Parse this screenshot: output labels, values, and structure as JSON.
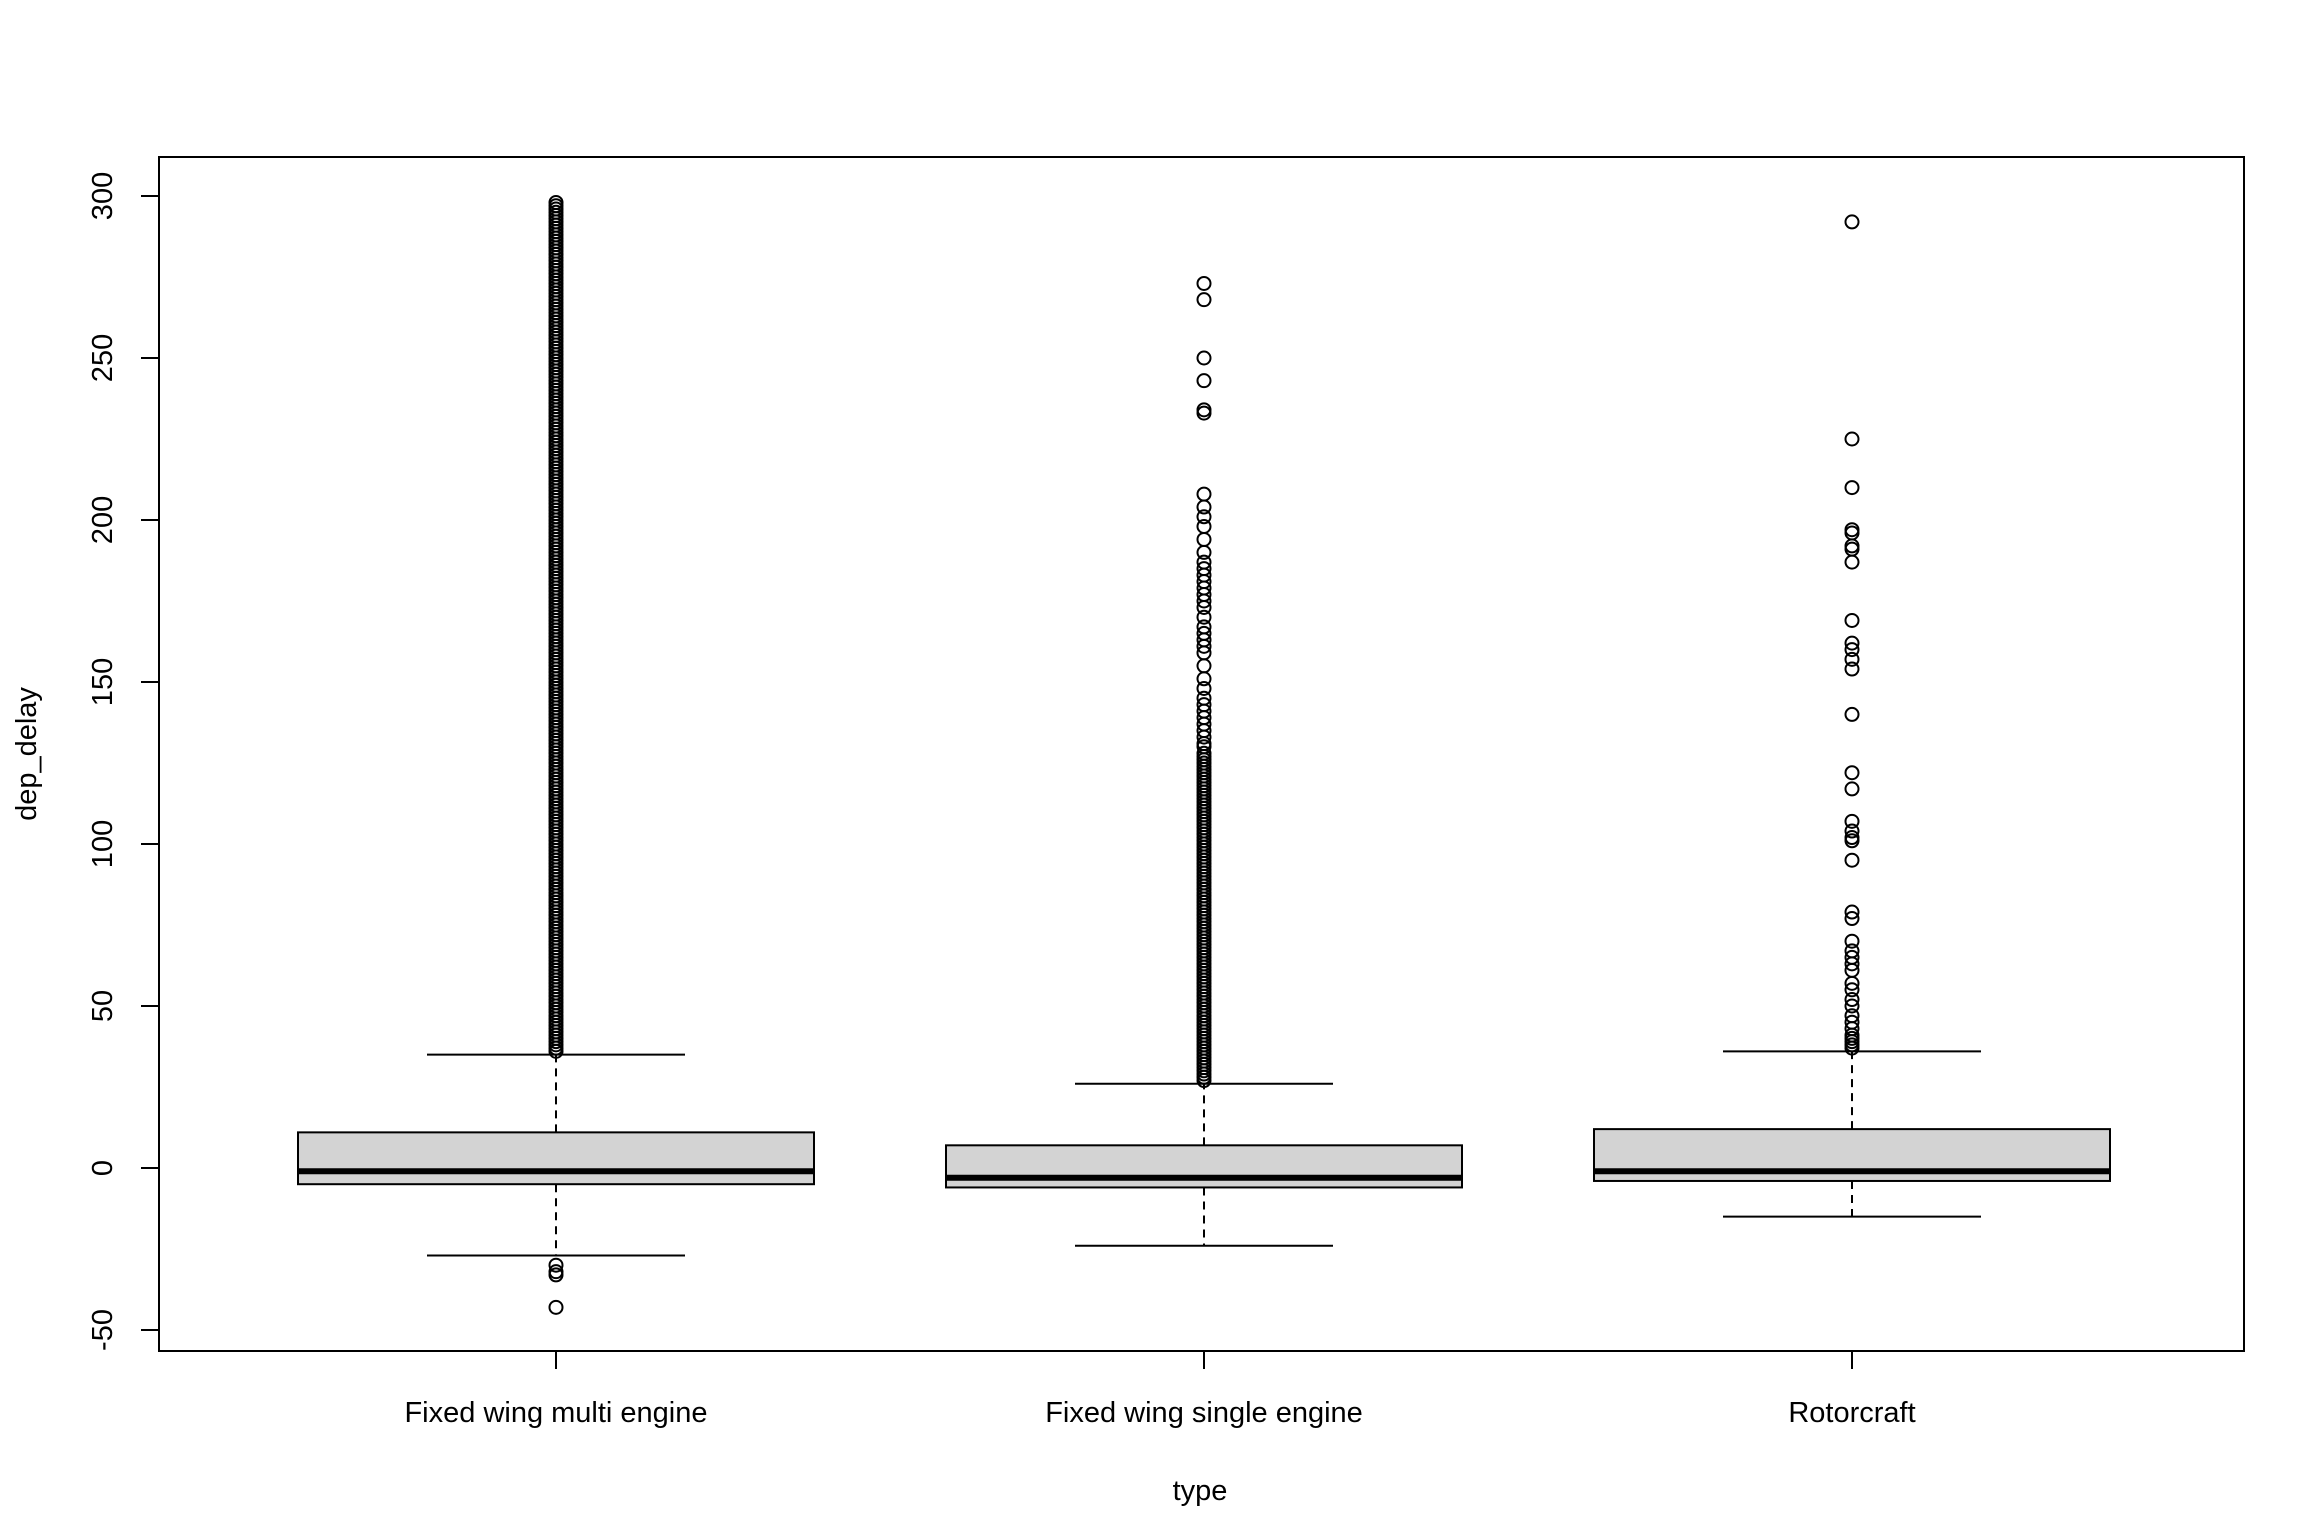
{
  "chart_data": {
    "type": "boxplot",
    "title": "",
    "xlabel": "type",
    "ylabel": "dep_delay",
    "ylim": [
      -55,
      308
    ],
    "yticks": [
      -50,
      0,
      50,
      100,
      150,
      200,
      250,
      300
    ],
    "ytick_labels": [
      "-50",
      "0",
      "50",
      "100",
      "150",
      "200",
      "250",
      "300"
    ],
    "categories": [
      "Fixed wing multi engine",
      "Fixed wing single engine",
      "Rotorcraft"
    ],
    "boxes": [
      {
        "category": "Fixed wing multi engine",
        "lower_whisker": -27,
        "q1": -5,
        "median": -1,
        "q3": 11,
        "upper_whisker": 35,
        "outliers_dense_range": [
          36,
          298
        ],
        "outliers": [
          -30,
          -32,
          -33,
          -43
        ]
      },
      {
        "category": "Fixed wing single engine",
        "lower_whisker": -24,
        "q1": -6,
        "median": -3,
        "q3": 7,
        "upper_whisker": 26,
        "outliers": [
          27,
          28,
          29,
          30,
          31,
          32,
          33,
          34,
          35,
          36,
          37,
          38,
          39,
          40,
          41,
          42,
          43,
          44,
          45,
          46,
          47,
          48,
          49,
          50,
          51,
          52,
          53,
          54,
          55,
          56,
          57,
          58,
          59,
          60,
          61,
          62,
          63,
          64,
          65,
          66,
          67,
          68,
          69,
          70,
          71,
          72,
          73,
          74,
          75,
          76,
          77,
          78,
          79,
          80,
          81,
          82,
          83,
          84,
          85,
          86,
          87,
          88,
          89,
          90,
          91,
          92,
          93,
          94,
          95,
          96,
          97,
          98,
          99,
          100,
          101,
          102,
          103,
          104,
          105,
          106,
          107,
          108,
          109,
          110,
          111,
          112,
          113,
          114,
          115,
          116,
          117,
          118,
          119,
          120,
          121,
          122,
          123,
          124,
          125,
          126,
          127,
          128,
          130,
          131,
          133,
          135,
          137,
          139,
          141,
          143,
          145,
          148,
          151,
          155,
          159,
          161,
          163,
          165,
          167,
          170,
          173,
          175,
          177,
          179,
          181,
          183,
          185,
          187,
          190,
          194,
          198,
          201,
          204,
          208,
          233,
          234,
          243,
          250,
          268,
          273
        ]
      },
      {
        "category": "Rotorcraft",
        "lower_whisker": -15,
        "q1": -4,
        "median": -1,
        "q3": 12,
        "upper_whisker": 36,
        "outliers": [
          37,
          38,
          39,
          40,
          41,
          43,
          45,
          47,
          50,
          52,
          55,
          57,
          61,
          63,
          65,
          67,
          70,
          77,
          79,
          95,
          101,
          102,
          104,
          107,
          117,
          122,
          140,
          154,
          157,
          160,
          162,
          169,
          187,
          191,
          192,
          196,
          197,
          210,
          225,
          292
        ]
      }
    ],
    "box_fill": "#d3d3d3",
    "line_color": "#000000",
    "grid": false,
    "legend": "none"
  }
}
